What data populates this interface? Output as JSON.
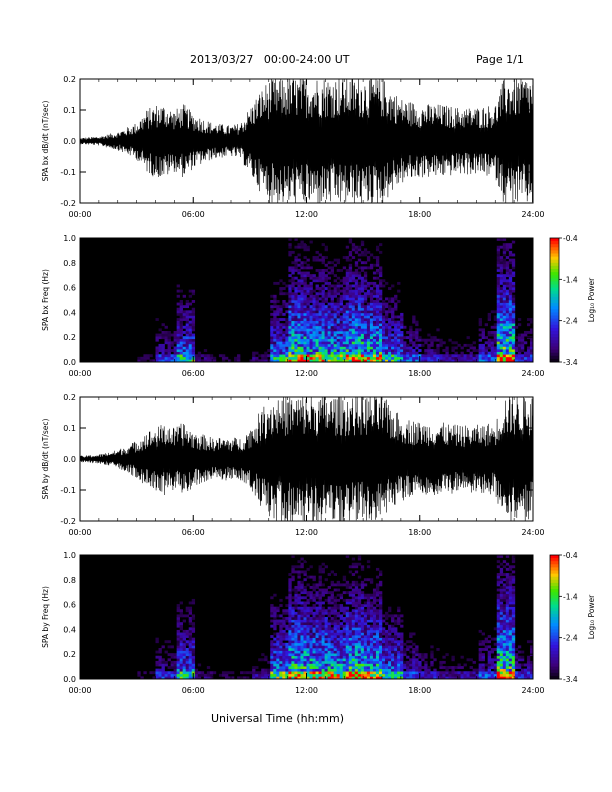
{
  "header": {
    "title": "2013/03/27   00:00-24:00 UT",
    "page": "Page 1/1"
  },
  "x_axis_title": "Universal Time (hh:mm)",
  "chart_data": [
    {
      "type": "line",
      "title": "",
      "ylabel": "SPA bx dB/dt (nT/sec)",
      "xlabel": "",
      "x_ticks": [
        "00:00",
        "06:00",
        "12:00",
        "18:00",
        "24:00"
      ],
      "y_ticks": [
        "-0.2",
        "-0.1",
        "0.0",
        "0.1",
        "0.2"
      ],
      "xlim": [
        0,
        24
      ],
      "ylim": [
        -0.2,
        0.2
      ],
      "series": [
        {
          "color": "#000000",
          "x": [
            0,
            1,
            2,
            3,
            3.5,
            4,
            4.5,
            5,
            5.5,
            6,
            7,
            8,
            8.5,
            9,
            9.5,
            10,
            11,
            12,
            13,
            14,
            15,
            16,
            16.5,
            17,
            17.5,
            18,
            19,
            20,
            21,
            22,
            22.5,
            23,
            23.5,
            24
          ],
          "amplitude": [
            0.01,
            0.015,
            0.03,
            0.06,
            0.1,
            0.12,
            0.12,
            0.1,
            0.12,
            0.09,
            0.06,
            0.05,
            0.06,
            0.11,
            0.16,
            0.2,
            0.21,
            0.21,
            0.21,
            0.21,
            0.21,
            0.21,
            0.17,
            0.14,
            0.13,
            0.12,
            0.12,
            0.11,
            0.11,
            0.12,
            0.21,
            0.21,
            0.21,
            0.21
          ]
        }
      ]
    },
    {
      "type": "heatmap",
      "title": "",
      "ylabel": "SPA bx Freq (Hz)",
      "xlabel": "",
      "x_ticks": [
        "00:00",
        "06:00",
        "12:00",
        "18:00",
        "24:00"
      ],
      "y_ticks": [
        "0.0",
        "0.2",
        "0.4",
        "0.6",
        "0.8",
        "1.0"
      ],
      "xlim": [
        0,
        24
      ],
      "ylim": [
        0,
        1
      ],
      "colorbar": {
        "label": "Log₁₀ Power",
        "ticks": [
          "-0.4",
          "-1.4",
          "-2.4",
          "-3.4"
        ],
        "range": [
          -3.4,
          -0.4
        ]
      },
      "activity": [
        0.05,
        0.1,
        0.1,
        0.15,
        0.35,
        0.6,
        0.2,
        0.15,
        0.15,
        0.2,
        0.6,
        0.85,
        0.8,
        0.75,
        0.85,
        0.8,
        0.6,
        0.4,
        0.3,
        0.25,
        0.25,
        0.4,
        0.9,
        0.35
      ]
    },
    {
      "type": "line",
      "title": "",
      "ylabel": "SPA by dB/dt (nT/sec)",
      "xlabel": "",
      "x_ticks": [
        "00:00",
        "06:00",
        "12:00",
        "18:00",
        "24:00"
      ],
      "y_ticks": [
        "-0.2",
        "-0.1",
        "0.0",
        "0.1",
        "0.2"
      ],
      "xlim": [
        0,
        24
      ],
      "ylim": [
        -0.2,
        0.2
      ],
      "series": [
        {
          "color": "#000000",
          "x": [
            0,
            1,
            2,
            3,
            3.5,
            4,
            4.5,
            5,
            5.5,
            6,
            7,
            8,
            8.5,
            9,
            9.5,
            10,
            11,
            12,
            13,
            14,
            15,
            16,
            16.5,
            17,
            17.5,
            18,
            19,
            20,
            21,
            22,
            22.5,
            23,
            23.5,
            24
          ],
          "amplitude": [
            0.01,
            0.015,
            0.03,
            0.06,
            0.09,
            0.1,
            0.12,
            0.1,
            0.12,
            0.09,
            0.07,
            0.07,
            0.07,
            0.1,
            0.15,
            0.2,
            0.21,
            0.21,
            0.21,
            0.21,
            0.21,
            0.21,
            0.17,
            0.14,
            0.13,
            0.12,
            0.12,
            0.11,
            0.11,
            0.12,
            0.21,
            0.21,
            0.21,
            0.21
          ]
        }
      ]
    },
    {
      "type": "heatmap",
      "title": "",
      "ylabel": "SPA by Freq (Hz)",
      "xlabel": "",
      "x_ticks": [
        "00:00",
        "06:00",
        "12:00",
        "18:00",
        "24:00"
      ],
      "y_ticks": [
        "0.0",
        "0.2",
        "0.4",
        "0.6",
        "0.8",
        "1.0"
      ],
      "xlim": [
        0,
        24
      ],
      "ylim": [
        0,
        1
      ],
      "colorbar": {
        "label": "Log₁₀ Power",
        "ticks": [
          "-0.4",
          "-1.4",
          "-2.4",
          "-3.4"
        ],
        "range": [
          -3.4,
          -0.4
        ]
      },
      "activity": [
        0.1,
        0.1,
        0.1,
        0.15,
        0.35,
        0.6,
        0.2,
        0.15,
        0.15,
        0.25,
        0.65,
        0.85,
        0.8,
        0.75,
        0.85,
        0.8,
        0.6,
        0.4,
        0.3,
        0.25,
        0.25,
        0.4,
        0.9,
        0.35
      ]
    }
  ]
}
